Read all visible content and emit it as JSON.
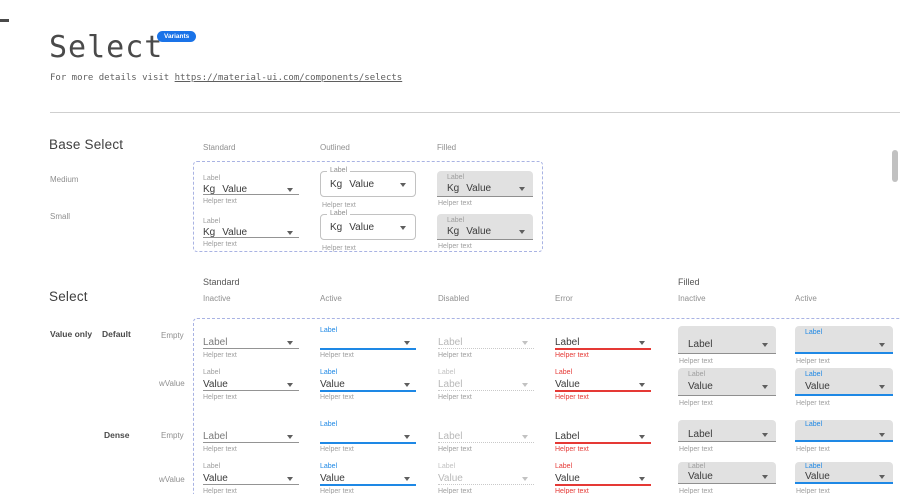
{
  "page": {
    "title": "Select",
    "badge": "Variants",
    "subtitle_prefix": "For more details visit ",
    "subtitle_link": "https://material-ui.com/components/selects"
  },
  "colors": {
    "accent_blue": "#1e88e5",
    "error_red": "#e53935",
    "filled_background": "#e1e1e1",
    "dashed_border": "#a9b3e3",
    "badge_blue": "#1a73e8"
  },
  "base_section": {
    "heading": "Base Select",
    "columns": [
      "Standard",
      "Outlined",
      "Filled"
    ],
    "rows": [
      {
        "label": "Medium",
        "cells": [
          {
            "variant": "standard",
            "state": "inactive",
            "caption": "Label",
            "prefix": "Kg",
            "value": "Value",
            "helper": "Helper text"
          },
          {
            "variant": "outlined",
            "state": "inactive",
            "caption": "Label",
            "prefix": "Kg",
            "value": "Value",
            "helper": "Helper text"
          },
          {
            "variant": "filled",
            "state": "inactive",
            "caption": "Label",
            "prefix": "Kg",
            "value": "Value",
            "helper": "Helper text"
          }
        ]
      },
      {
        "label": "Small",
        "cells": [
          {
            "variant": "standard",
            "state": "inactive",
            "caption": "Label",
            "prefix": "Kg",
            "value": "Value",
            "helper": "Helper text"
          },
          {
            "variant": "outlined",
            "state": "inactive",
            "caption": "Label",
            "prefix": "Kg",
            "value": "Value",
            "helper": "Helper text"
          },
          {
            "variant": "filled",
            "state": "inactive",
            "caption": "Label",
            "prefix": "Kg",
            "value": "Value",
            "helper": "Helper text"
          }
        ]
      }
    ]
  },
  "select_section": {
    "heading": "Select",
    "groups": [
      {
        "label": "Standard",
        "columns": [
          "Inactive",
          "Active",
          "Disabled",
          "Error"
        ]
      },
      {
        "label": "Filled",
        "columns": [
          "Inactive",
          "Active"
        ]
      }
    ],
    "row_label_primary": "Value only",
    "subgroups": [
      {
        "label": "Default"
      },
      {
        "label": "Dense"
      }
    ],
    "rows": [
      {
        "label": "Empty",
        "dense": false,
        "cells": [
          {
            "variant": "standard",
            "state": "inactive",
            "caption": "",
            "value": "Label",
            "placeholder": true,
            "helper": "Helper text"
          },
          {
            "variant": "standard",
            "state": "active",
            "caption": "Label",
            "value": "",
            "helper": "Helper text"
          },
          {
            "variant": "standard",
            "state": "disabled",
            "caption": "",
            "value": "Label",
            "placeholder": true,
            "helper": "Helper text"
          },
          {
            "variant": "standard",
            "state": "error",
            "caption": "",
            "value": "Label",
            "helper": "Helper text"
          },
          {
            "variant": "filled",
            "state": "inactive",
            "caption": "",
            "value": "Label",
            "helper": "Helper text"
          },
          {
            "variant": "filled",
            "state": "active",
            "caption": "Label",
            "value": "",
            "helper": "Helper text"
          }
        ]
      },
      {
        "label": "wValue",
        "dense": false,
        "cells": [
          {
            "variant": "standard",
            "state": "inactive",
            "caption": "Label",
            "value": "Value",
            "helper": "Helper text"
          },
          {
            "variant": "standard",
            "state": "active",
            "caption": "Label",
            "value": "Value",
            "helper": "Helper text"
          },
          {
            "variant": "standard",
            "state": "disabled",
            "caption": "Label",
            "value": "Label",
            "helper": "Helper text"
          },
          {
            "variant": "standard",
            "state": "error",
            "caption": "Label",
            "value": "Value",
            "helper": "Helper text"
          },
          {
            "variant": "filled",
            "state": "inactive",
            "caption": "Label",
            "value": "Value",
            "helper": "Helper text"
          },
          {
            "variant": "filled",
            "state": "active",
            "caption": "Label",
            "value": "Value",
            "helper": "Helper text"
          }
        ]
      },
      {
        "label": "Empty",
        "dense": true,
        "cells": [
          {
            "variant": "standard",
            "state": "inactive",
            "caption": "",
            "value": "Label",
            "placeholder": true,
            "helper": "Helper text"
          },
          {
            "variant": "standard",
            "state": "active",
            "caption": "Label",
            "value": "",
            "helper": "Helper text"
          },
          {
            "variant": "standard",
            "state": "disabled",
            "caption": "",
            "value": "Label",
            "placeholder": true,
            "helper": "Helper text"
          },
          {
            "variant": "standard",
            "state": "error",
            "caption": "",
            "value": "Label",
            "helper": "Helper text"
          },
          {
            "variant": "filled",
            "state": "inactive",
            "caption": "",
            "value": "Label",
            "helper": "Helper text"
          },
          {
            "variant": "filled",
            "state": "active",
            "caption": "Label",
            "value": "",
            "helper": "Helper text"
          }
        ]
      },
      {
        "label": "wValue",
        "dense": true,
        "cells": [
          {
            "variant": "standard",
            "state": "inactive",
            "caption": "Label",
            "value": "Value",
            "helper": "Helper text"
          },
          {
            "variant": "standard",
            "state": "active",
            "caption": "Label",
            "value": "Value",
            "helper": "Helper text"
          },
          {
            "variant": "standard",
            "state": "disabled",
            "caption": "Label",
            "value": "Value",
            "helper": "Helper text"
          },
          {
            "variant": "standard",
            "state": "error",
            "caption": "Label",
            "value": "Value",
            "helper": "Helper text"
          },
          {
            "variant": "filled",
            "state": "inactive",
            "caption": "Label",
            "value": "Value",
            "helper": "Helper text"
          },
          {
            "variant": "filled",
            "state": "active",
            "caption": "Label",
            "value": "Value",
            "helper": "Helper text"
          }
        ]
      }
    ]
  }
}
